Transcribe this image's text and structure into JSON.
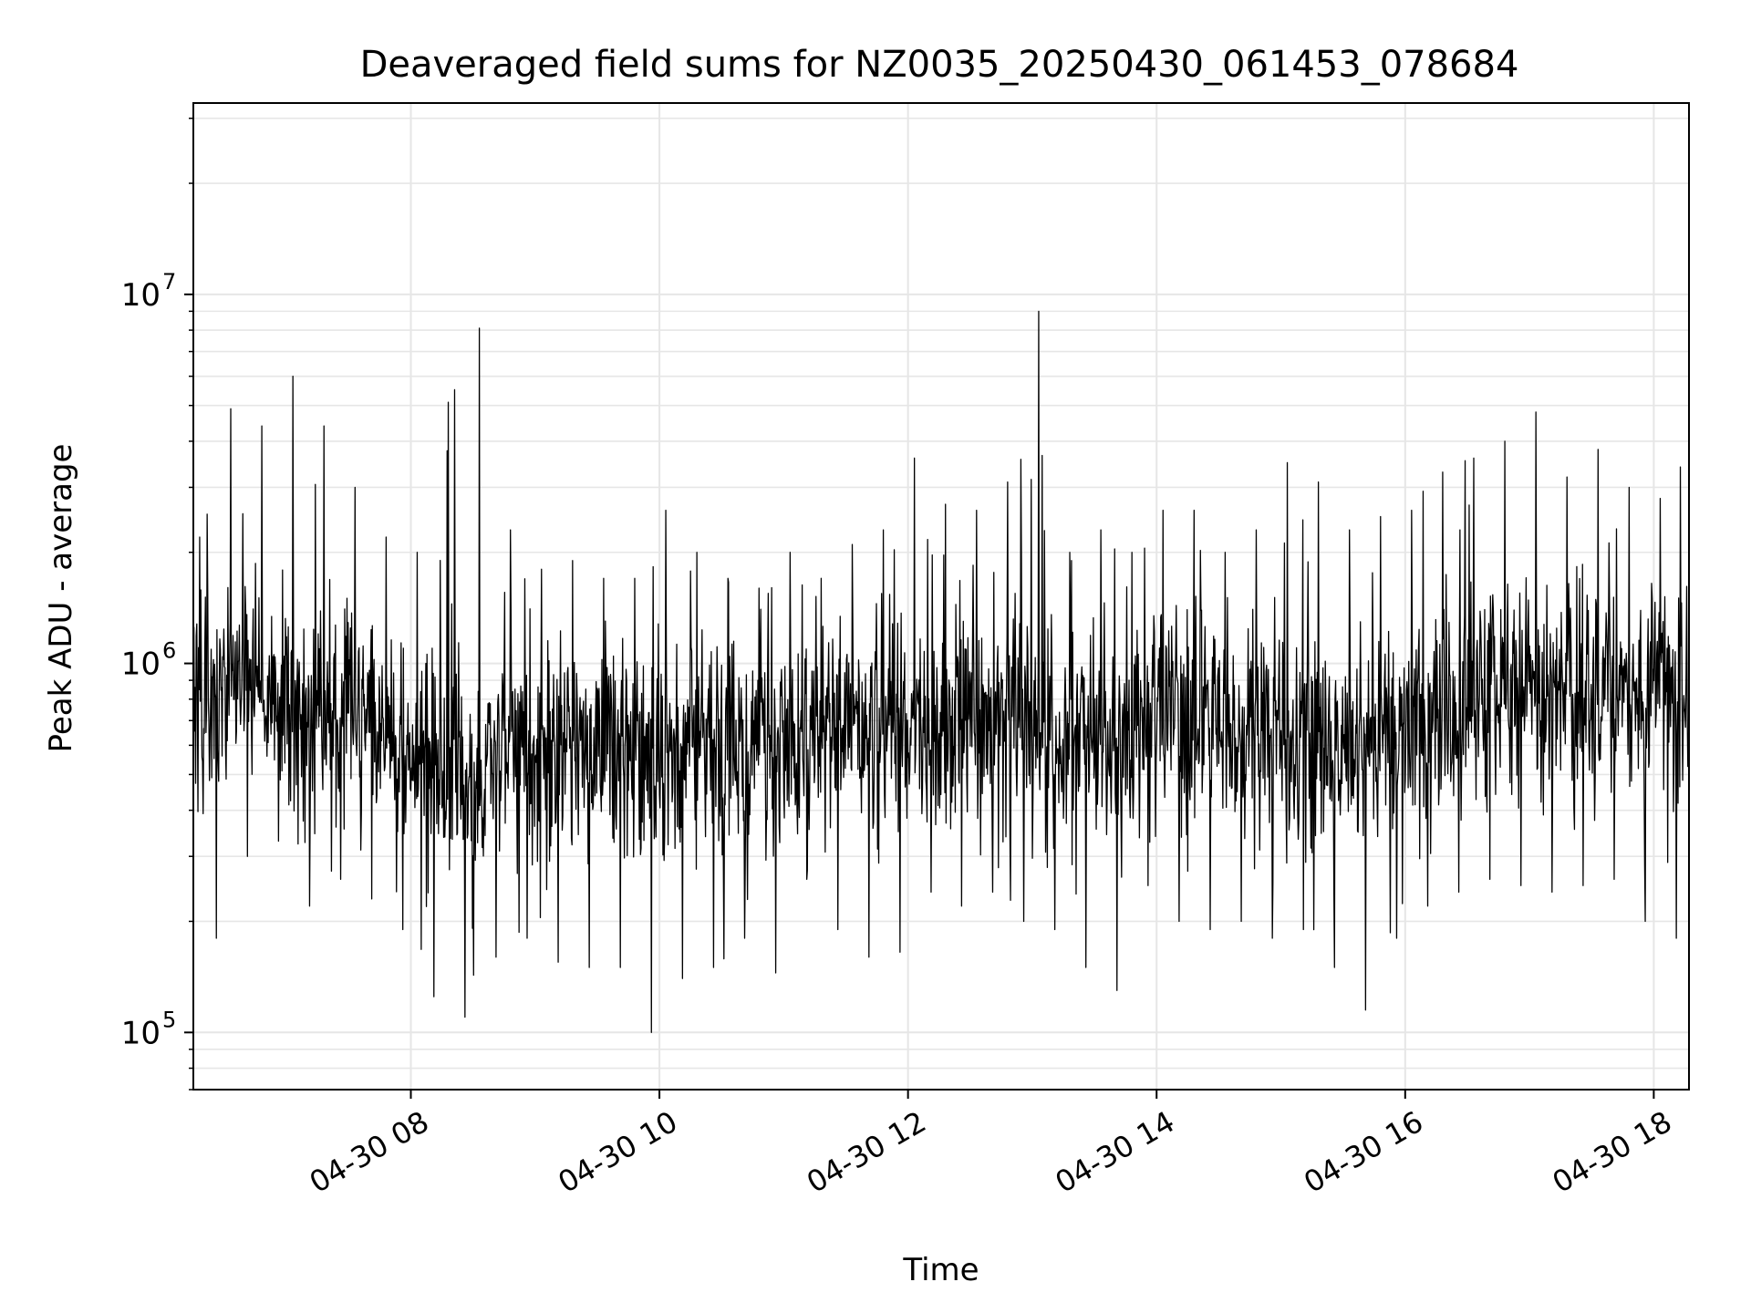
{
  "chart_data": {
    "type": "line",
    "title": "Deaveraged field sums for NZ0035_20250430_061453_078684",
    "xlabel": "Time",
    "ylabel": "Peak ADU - average",
    "x_range": [
      "2025-04-30 06:15",
      "2025-04-30 18:17"
    ],
    "y_scale": "log",
    "ylim": [
      70000,
      33000000
    ],
    "x_ticks": [
      {
        "value": "2025-04-30 08:00",
        "label": "04-30 08"
      },
      {
        "value": "2025-04-30 10:00",
        "label": "04-30 10"
      },
      {
        "value": "2025-04-30 12:00",
        "label": "04-30 12"
      },
      {
        "value": "2025-04-30 14:00",
        "label": "04-30 14"
      },
      {
        "value": "2025-04-30 16:00",
        "label": "04-30 16"
      },
      {
        "value": "2025-04-30 18:00",
        "label": "04-30 18"
      }
    ],
    "y_ticks": [
      {
        "value": 100000,
        "base": "10",
        "exp": "5"
      },
      {
        "value": 1000000,
        "base": "10",
        "exp": "6"
      },
      {
        "value": 10000000,
        "base": "10",
        "exp": "7"
      }
    ],
    "grid": true,
    "line_color": "#000000",
    "x": [
      "2025-04-30 06:15",
      "2025-04-30 06:30",
      "2025-04-30 06:45",
      "2025-04-30 07:00",
      "2025-04-30 07:15",
      "2025-04-30 07:30",
      "2025-04-30 07:45",
      "2025-04-30 08:00",
      "2025-04-30 08:15",
      "2025-04-30 08:30",
      "2025-04-30 08:45",
      "2025-04-30 09:00",
      "2025-04-30 09:15",
      "2025-04-30 09:30",
      "2025-04-30 09:45",
      "2025-04-30 10:00",
      "2025-04-30 10:15",
      "2025-04-30 10:30",
      "2025-04-30 10:45",
      "2025-04-30 11:00",
      "2025-04-30 11:15",
      "2025-04-30 11:30",
      "2025-04-30 11:45",
      "2025-04-30 12:00",
      "2025-04-30 12:15",
      "2025-04-30 12:30",
      "2025-04-30 12:45",
      "2025-04-30 13:00",
      "2025-04-30 13:15",
      "2025-04-30 13:30",
      "2025-04-30 13:45",
      "2025-04-30 14:00",
      "2025-04-30 14:15",
      "2025-04-30 14:30",
      "2025-04-30 14:45",
      "2025-04-30 15:00",
      "2025-04-30 15:15",
      "2025-04-30 15:30",
      "2025-04-30 15:45",
      "2025-04-30 16:00",
      "2025-04-30 16:15",
      "2025-04-30 16:30",
      "2025-04-30 16:45",
      "2025-04-30 17:00",
      "2025-04-30 17:15",
      "2025-04-30 17:30",
      "2025-04-30 17:45",
      "2025-04-30 18:00",
      "2025-04-30 18:15"
    ],
    "series": [
      {
        "median": [
          780000,
          820000,
          900000,
          760000,
          700000,
          800000,
          620000,
          560000,
          520000,
          480000,
          520000,
          560000,
          560000,
          550000,
          580000,
          600000,
          560000,
          600000,
          620000,
          600000,
          700000,
          660000,
          680000,
          700000,
          650000,
          680000,
          720000,
          660000,
          600000,
          640000,
          620000,
          700000,
          720000,
          680000,
          700000,
          620000,
          600000,
          580000,
          600000,
          680000,
          700000,
          780000,
          820000,
          860000,
          840000,
          820000,
          800000,
          820000,
          860000
        ],
        "low": [
          320000,
          180000,
          300000,
          330000,
          220000,
          260000,
          230000,
          190000,
          125000,
          110000,
          160000,
          180000,
          155000,
          150000,
          150000,
          100000,
          140000,
          150000,
          180000,
          145000,
          260000,
          190000,
          160000,
          165000,
          240000,
          220000,
          240000,
          200000,
          190000,
          150000,
          130000,
          250000,
          200000,
          190000,
          200000,
          180000,
          190000,
          150000,
          115000,
          180000,
          220000,
          240000,
          260000,
          250000,
          240000,
          250000,
          260000,
          200000,
          180000
        ],
        "high": [
          2200000,
          4900000,
          4400000,
          6000000,
          4400000,
          3000000,
          2200000,
          2000000,
          5100000,
          8100000,
          2300000,
          1800000,
          1900000,
          1700000,
          1700000,
          2600000,
          2000000,
          1700000,
          1600000,
          2000000,
          1700000,
          2100000,
          2300000,
          3600000,
          2700000,
          2600000,
          3100000,
          9000000,
          2000000,
          2300000,
          2000000,
          2600000,
          2600000,
          2000000,
          2300000,
          3500000,
          3100000,
          2300000,
          2500000,
          2600000,
          3300000,
          3600000,
          4000000,
          4800000,
          3200000,
          3800000,
          3000000,
          2800000,
          3600000
        ]
      }
    ]
  }
}
